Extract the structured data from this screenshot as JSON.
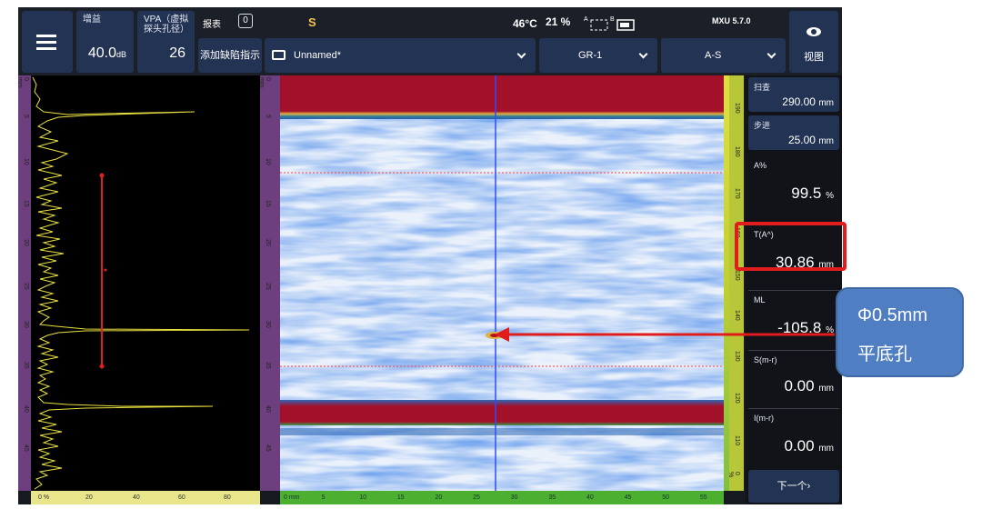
{
  "top": {
    "gain_label": "增益",
    "gain_value": "40.0",
    "gain_unit": "dB",
    "vpa_label": "VPA（虚拟探头孔径）",
    "vpa_value": "26",
    "report_label": "报表",
    "report_count": "0",
    "s_indicator": "S",
    "temperature": "46°C",
    "battery": "21 %",
    "ab_a": "A",
    "ab_b": "B",
    "version": "MXU 5.7.0",
    "view_label": "视图",
    "add_flaw_label": "添加缺陷指示",
    "file_name": "Unnamed*",
    "group": "GR-1",
    "view_mode": "A-S"
  },
  "ascan": {
    "x_ticks": [
      "0 %",
      "20",
      "40",
      "60",
      "80"
    ],
    "y_ticks": [
      "0 mm",
      "5",
      "10",
      "15",
      "20",
      "25",
      "30",
      "35",
      "40",
      "45"
    ],
    "gate_marker": "L"
  },
  "cscan": {
    "y_ticks": [
      "0 mm",
      "5",
      "10",
      "15",
      "20",
      "25",
      "30",
      "35",
      "40",
      "45"
    ],
    "x_ticks": [
      "0 mm",
      "5",
      "10",
      "15",
      "20",
      "25",
      "30",
      "35",
      "40",
      "45",
      "50",
      "55"
    ],
    "color_ruler_ticks": [
      "190",
      "180",
      "170",
      "160",
      "150",
      "140",
      "130",
      "120",
      "110",
      "0 %"
    ]
  },
  "readings": [
    {
      "label": "扫查",
      "value": "290.00",
      "unit": "mm"
    },
    {
      "label": "步进",
      "value": "25.00",
      "unit": "mm"
    },
    {
      "label": "A%",
      "value": "99.5",
      "unit": "%"
    },
    {
      "label": "T(A^)",
      "value": "30.86",
      "unit": "mm"
    },
    {
      "label": "ML",
      "value": "-105.8",
      "unit": "%"
    },
    {
      "label": "S(m-r)",
      "value": "0.00",
      "unit": "mm"
    },
    {
      "label": "I(m-r)",
      "value": "0.00",
      "unit": "mm"
    }
  ],
  "next_label": "下一个›",
  "annotation": {
    "line1": "Φ0.5mm",
    "line2": "平底孔"
  },
  "colors": {
    "panel": "#233353",
    "highlight": "#e01c1c",
    "callout": "#4f7fc2",
    "cursor": "#2f4bff"
  }
}
